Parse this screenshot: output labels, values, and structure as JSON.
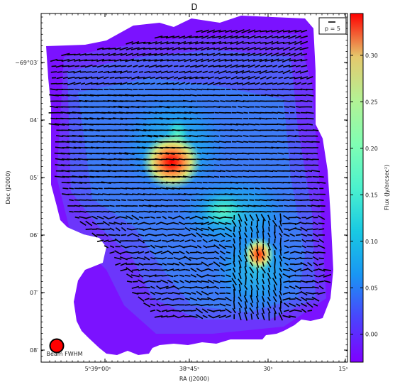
{
  "chart_data": {
    "type": "heatmap",
    "title": "D",
    "xlabel": "RA (J2000)",
    "ylabel": "Dec (J2000)",
    "x_ticks": [
      "5ʰ39ᵐ00ˢ",
      "38ᵐ45ˢ",
      "30ˢ",
      "15ˢ"
    ],
    "y_ticks": [
      "−69°03′",
      "04′",
      "05′",
      "06′",
      "07′",
      "08′"
    ],
    "colorbar": {
      "label": "Flux (Jy/arcsec²)",
      "ticks": [
        "0.00",
        "0.05",
        "0.10",
        "0.15",
        "0.20",
        "0.25",
        "0.30"
      ],
      "tick_values": [
        0.0,
        0.05,
        0.1,
        0.15,
        0.2,
        0.25,
        0.3
      ],
      "vmin": -0.03,
      "vmax": 0.345,
      "colormap": "rainbow"
    },
    "peaks": [
      {
        "ra_offset_arcmin": -0.3,
        "dec": "-69°04.7′",
        "flux": 0.33
      },
      {
        "ra_offset_arcmin": 1.45,
        "dec": "-69°06.3′",
        "flux": 0.26
      }
    ],
    "vector_legend": "p = 5",
    "beam_label": "Beam FWHM",
    "beam_color": "#ff0000",
    "vector_color": "#000000"
  }
}
